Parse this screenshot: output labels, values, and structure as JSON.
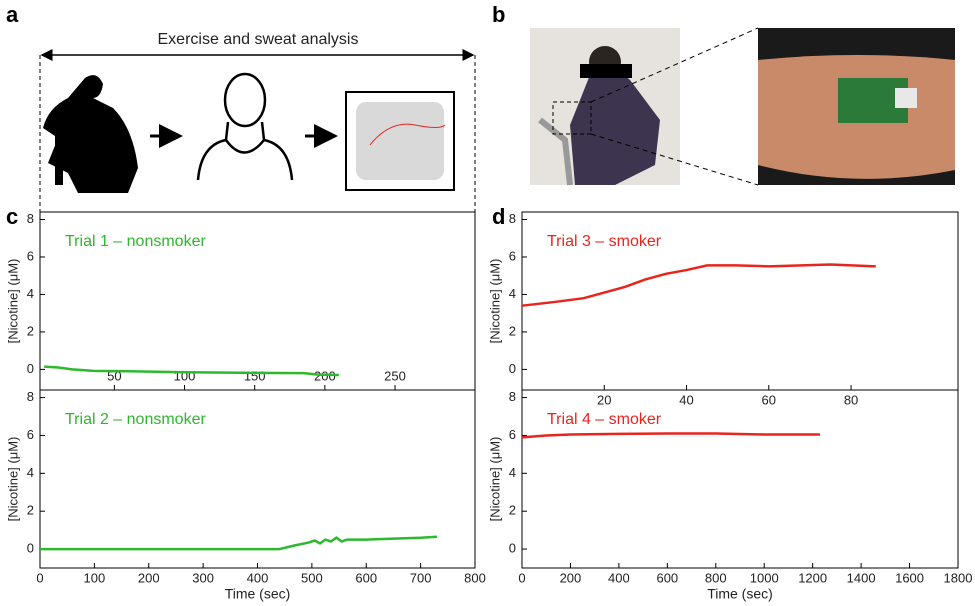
{
  "panel_labels": [
    "a",
    "b",
    "c",
    "d"
  ],
  "header": "Exercise and sweat analysis",
  "chart_data": [
    {
      "type": "line",
      "annotation": "Trial 1 – nonsmoker",
      "ylabel": "[Nicotine] (μM)",
      "x": [
        0,
        10,
        20,
        35,
        60,
        100,
        140,
        185,
        195,
        210
      ],
      "series": [
        {
          "name": "Trial 1 – nonsmoker",
          "color": "#2db82d",
          "values": [
            0.15,
            0.1,
            0.0,
            -0.08,
            -0.1,
            -0.15,
            -0.18,
            -0.2,
            -0.28,
            -0.3
          ]
        }
      ],
      "xlim": [
        -3,
        307
      ],
      "xticks": [
        50,
        100,
        150,
        200,
        250
      ],
      "ylim": [
        -1.1,
        8.4
      ],
      "yticks": [
        0,
        2,
        4,
        6,
        8
      ]
    },
    {
      "type": "line",
      "annotation": "Trial 2 – nonsmoker",
      "ylabel": "[Nicotine] (μM)",
      "xlabel": "Time (sec)",
      "x": [
        0,
        200,
        440,
        470,
        495,
        505,
        515,
        525,
        535,
        545,
        555,
        565,
        600,
        650,
        700,
        730
      ],
      "series": [
        {
          "name": "Trial 2 – nonsmoker",
          "color": "#2db82d",
          "values": [
            0,
            0,
            0,
            0.2,
            0.35,
            0.45,
            0.3,
            0.5,
            0.4,
            0.6,
            0.4,
            0.5,
            0.5,
            0.55,
            0.6,
            0.65
          ]
        }
      ],
      "xlim": [
        0,
        800
      ],
      "xticks": [
        0,
        100,
        200,
        300,
        400,
        500,
        600,
        700,
        800
      ],
      "ylim": [
        -1.0,
        8.4
      ],
      "yticks": [
        0,
        2,
        4,
        6,
        8
      ]
    },
    {
      "type": "line",
      "annotation": "Trial 3 – smoker",
      "ylabel": "[Nicotine] (μM)",
      "x": [
        0,
        8,
        15,
        20,
        25,
        30,
        35,
        40,
        45,
        52,
        60,
        68,
        75,
        86
      ],
      "series": [
        {
          "name": "Trial 3 – smoker",
          "color": "#e8251d",
          "values": [
            3.4,
            3.6,
            3.8,
            4.1,
            4.4,
            4.8,
            5.1,
            5.3,
            5.55,
            5.55,
            5.5,
            5.55,
            5.6,
            5.5
          ]
        }
      ],
      "xlim": [
        0,
        106
      ],
      "xticks": [
        20,
        40,
        60,
        80
      ],
      "ylim": [
        -1.1,
        8.4
      ],
      "yticks": [
        0,
        2,
        4,
        6,
        8
      ]
    },
    {
      "type": "line",
      "annotation": "Trial 4 – smoker",
      "ylabel": "[Nicotine] (μM)",
      "xlabel": "Time (sec)",
      "x": [
        0,
        100,
        200,
        400,
        600,
        800,
        1000,
        1230
      ],
      "series": [
        {
          "name": "Trial 4 – smoker",
          "color": "#e8251d",
          "values": [
            5.9,
            6.0,
            6.05,
            6.08,
            6.1,
            6.1,
            6.05,
            6.05
          ]
        }
      ],
      "xlim": [
        0,
        1800
      ],
      "xticks": [
        0,
        200,
        400,
        600,
        800,
        1000,
        1200,
        1400,
        1600,
        1800
      ],
      "ylim": [
        -1.0,
        8.4
      ],
      "yticks": [
        0,
        2,
        4,
        6,
        8
      ]
    }
  ]
}
